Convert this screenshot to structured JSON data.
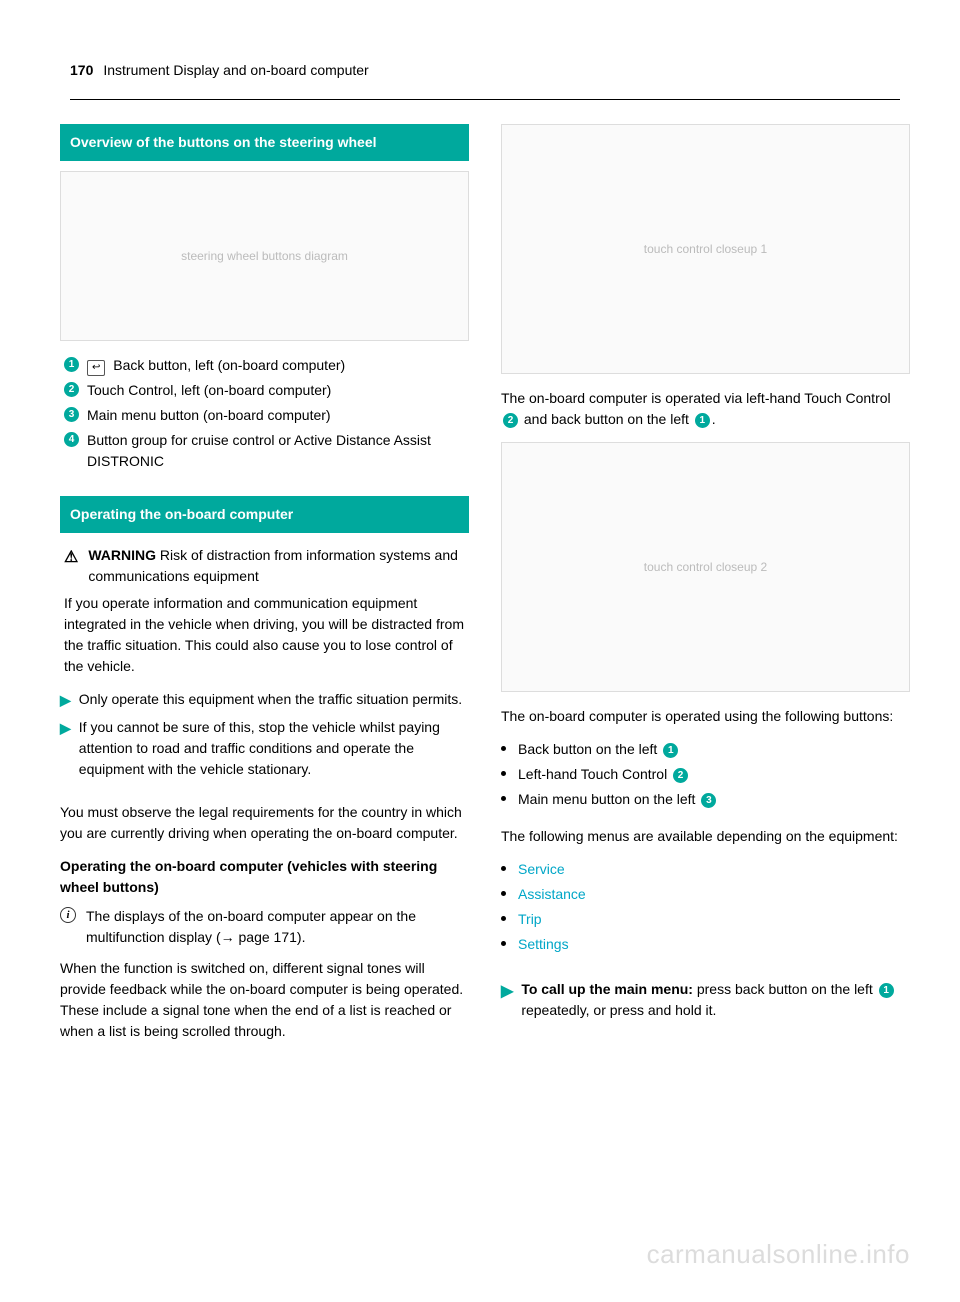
{
  "colors": {
    "accent": "#00a99d",
    "link": "#00a6c7",
    "text": "#000000",
    "bg": "#ffffff",
    "watermark": "#dcdcdc"
  },
  "header": {
    "page_number": "170",
    "title": "Instrument Display and on-board computer"
  },
  "left": {
    "section1_title": "Overview of the buttons on the steering wheel",
    "diagram1_alt": "steering wheel buttons diagram",
    "callouts": [
      {
        "n": "1",
        "prefix_icon": "↩",
        "text": "Back button, left (on-board computer)"
      },
      {
        "n": "2",
        "text": "Touch Control, left (on-board computer)"
      },
      {
        "n": "3",
        "text": "Main menu button (on-board computer)"
      },
      {
        "n": "4",
        "text": "Button group for cruise control or Active Distance Assist DISTRONIC"
      }
    ],
    "section2_title": "Operating the on-board computer",
    "warning_label": "WARNING",
    "warning_head": " Risk of distraction from information systems and communications equipment",
    "warning_body": "If you operate information and communication equipment integrated in the vehicle when driving, you will be distracted from the traffic situation. This could also cause you to lose control of the vehicle.",
    "warning_actions": [
      "Only operate this equipment when the traffic situation permits.",
      "If you cannot be sure of this, stop the vehicle whilst paying attention to road and traffic conditions and operate the equipment with the vehicle stationary."
    ],
    "legal": "You must observe the legal requirements for the country in which you are currently driving when operating the on-board computer.",
    "subhead": "Operating the on-board computer (vehicles with steering wheel buttons)",
    "info_text_a": "The displays of the on-board computer appear on the multifunction display (",
    "info_arrow": "→",
    "info_text_b": " page 171).",
    "signal_para": "When the function is switched on, different signal tones will provide feedback while the on-board computer is being operated. These include a signal tone when the end of a list is reached or when a list is being scrolled through."
  },
  "right": {
    "diagram2_alt": "touch control closeup 1",
    "para1_a": "The on-board computer is operated via left-hand Touch Control ",
    "para1_n1": "2",
    "para1_b": " and back button on the left ",
    "para1_n2": "1",
    "para1_c": ".",
    "diagram3_alt": "touch control closeup 2",
    "para2": "The on-board computer is operated using the following buttons:",
    "buttons": [
      {
        "text": "Back button on the left ",
        "n": "1"
      },
      {
        "text": "Left-hand Touch Control ",
        "n": "2"
      },
      {
        "text": "Main menu button on the left ",
        "n": "3"
      }
    ],
    "menus_intro": "The following menus are available depending on the equipment:",
    "menus": [
      "Service",
      "Assistance",
      "Trip",
      "Settings"
    ],
    "action_label": "To call up the main menu:",
    "action_a": " press back button on the left ",
    "action_n": "1",
    "action_b": " repeatedly, or press and hold it."
  },
  "watermark": "carmanualsonline.info"
}
